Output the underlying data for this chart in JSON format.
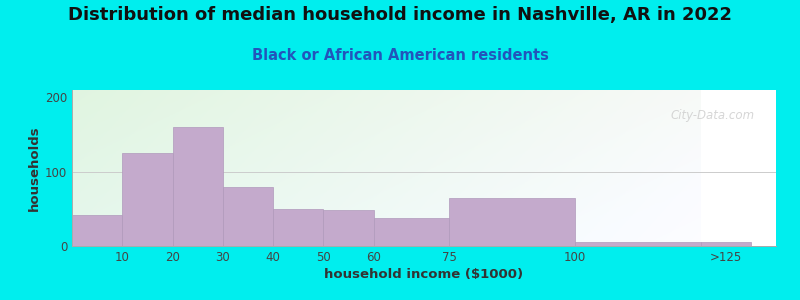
{
  "title": "Distribution of median household income in Nashville, AR in 2022",
  "subtitle": "Black or African American residents",
  "xlabel": "household income ($1000)",
  "ylabel": "households",
  "background_outer": "#00EEEE",
  "bar_color": "#C4AACC",
  "bar_edge_color": "#B099BB",
  "bin_edges": [
    0,
    10,
    20,
    30,
    40,
    50,
    60,
    75,
    100,
    125
  ],
  "bin_labels": [
    "10",
    "20",
    "30",
    "40",
    "50",
    "60",
    "75",
    "100",
    ">125"
  ],
  "values": [
    42,
    125,
    160,
    80,
    50,
    48,
    38,
    65,
    5
  ],
  "ylim": [
    0,
    210
  ],
  "yticks": [
    0,
    100,
    200
  ],
  "title_fontsize": 13,
  "subtitle_fontsize": 10.5,
  "axis_label_fontsize": 9.5,
  "watermark_text": "City-Data.com"
}
